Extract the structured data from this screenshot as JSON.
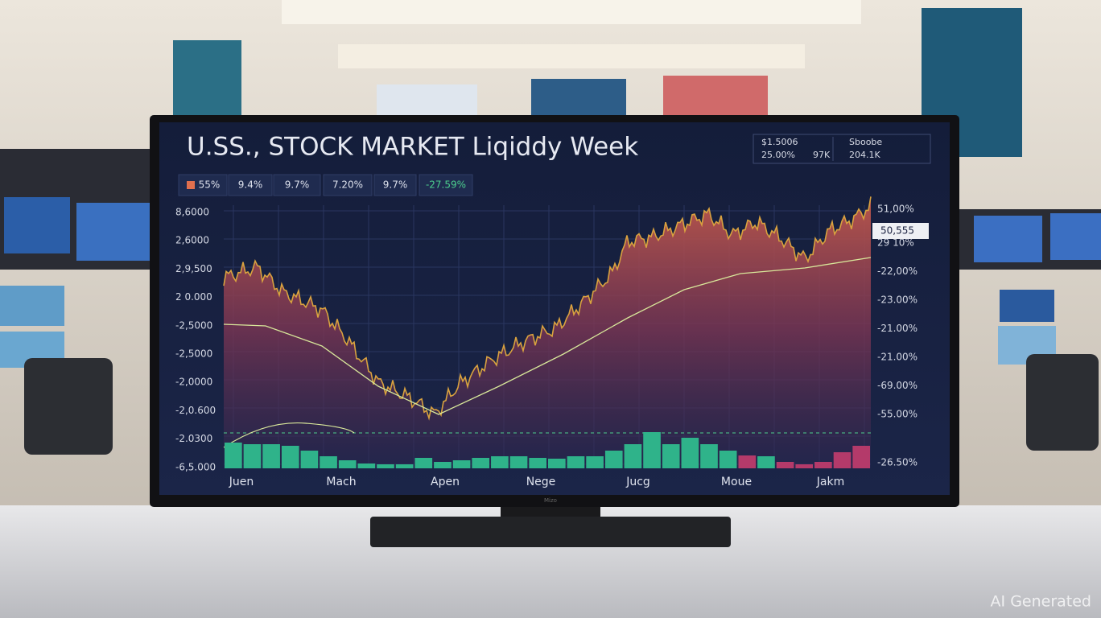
{
  "screen": {
    "title": "U.SS., STOCK MARKET Liqiddy Week",
    "info_box": [
      "$1.5006",
      "25.00%",
      "97K",
      "Sboobe",
      "204.1K"
    ],
    "chips": [
      "55%",
      "9.4%",
      "9.7%",
      "7.20%",
      "9.7%",
      "-27.59%"
    ],
    "left_axis": [
      "8,6000",
      "2,6000",
      "2,9,500",
      "2 0.000",
      "-2,5000",
      "-2,5000",
      "-2,0000",
      "-2,0.600",
      "-2.0300",
      "-6,5.000"
    ],
    "right_axis": [
      "51,00%",
      "29 10%",
      "-22,00%",
      "-23.00%",
      "-21.00%",
      "-21.00%",
      "-69.00%",
      "-55.00%",
      "-26.50%"
    ],
    "price_tag": "50,555",
    "x_axis": [
      "Juen",
      "Mach",
      "Apen",
      "Nege",
      "Jucg",
      "Moue",
      "Jakm"
    ],
    "brand": "Mizo"
  },
  "watermark": "AI Generated"
}
